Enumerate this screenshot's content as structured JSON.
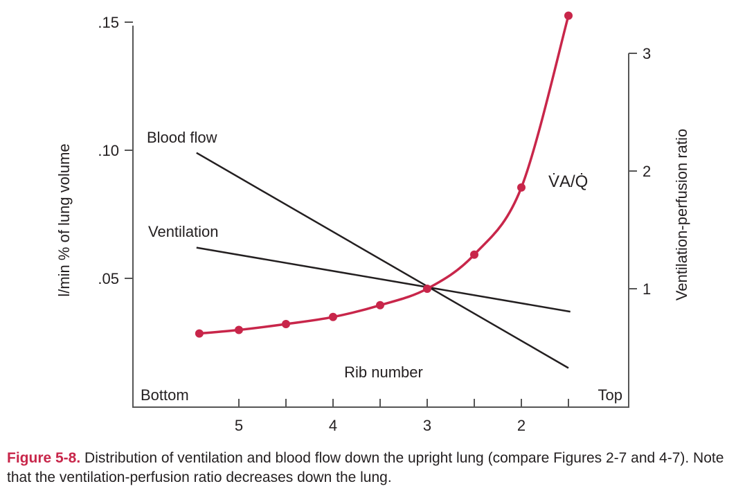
{
  "chart_data": {
    "type": "line",
    "xlabel": "Rib number",
    "x_end_labels": {
      "left": "Bottom",
      "right": "Top"
    },
    "x_ticks": [
      5,
      4,
      3,
      2
    ],
    "x_tick_labels": [
      "5",
      "4",
      "3",
      "2"
    ],
    "xlim": [
      5.6,
      1.4
    ],
    "x_reversed": true,
    "ylabel_left": "l/min % of lung volume",
    "y_left_ticks": [
      0.05,
      0.1,
      0.15
    ],
    "y_left_tick_labels": [
      ".05",
      ".10",
      ".15"
    ],
    "ylabel_right": "Ventilation-perfusion ratio",
    "y_right_ticks": [
      1,
      2,
      3
    ],
    "y_right_tick_labels": [
      "1",
      "2",
      "3"
    ],
    "grid": false,
    "series": [
      {
        "name": "Blood flow",
        "axis": "left",
        "color": "#231f20",
        "x": [
          5.45,
          1.5
        ],
        "y": [
          0.099,
          0.015
        ]
      },
      {
        "name": "Ventilation",
        "axis": "left",
        "color": "#231f20",
        "x": [
          5.45,
          1.48
        ],
        "y": [
          0.062,
          0.037
        ]
      },
      {
        "name": "V̇A/Q̇",
        "axis": "right",
        "color": "#c8264a",
        "markers": true,
        "x": [
          5.42,
          5.0,
          4.5,
          4.0,
          3.5,
          3.0,
          2.5,
          2.0,
          1.5
        ],
        "y": [
          0.62,
          0.65,
          0.7,
          0.76,
          0.86,
          1.0,
          1.29,
          1.86,
          3.32
        ]
      }
    ]
  },
  "caption": {
    "figure_label": "Figure 5-8.",
    "text": " Distribution of ventilation and blood flow down the upright lung (compare Figures 2-7 and 4-7). Note that the ventilation-perfusion ratio decreases down the lung."
  }
}
